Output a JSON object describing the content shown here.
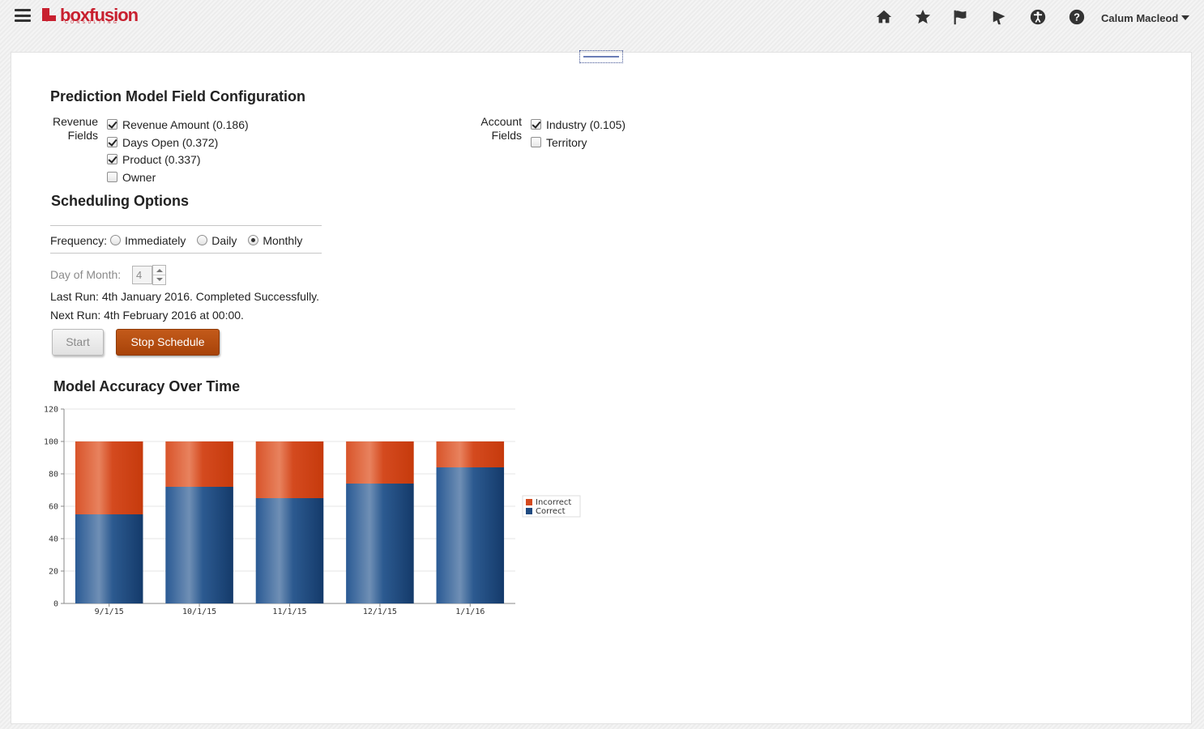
{
  "header": {
    "logo_text": "boxfusion",
    "logo_sub": "CONSULTING",
    "user_name": "Calum Macleod",
    "icons": [
      "home-icon",
      "star-icon",
      "flag-icon",
      "megaphone-icon",
      "accessibility-icon",
      "help-icon"
    ]
  },
  "config": {
    "title": "Prediction Model Field Configuration",
    "revenue_label_1": "Revenue",
    "revenue_label_2": "Fields",
    "revenue_fields": [
      {
        "label": "Revenue Amount (0.186)",
        "checked": true
      },
      {
        "label": "Days Open (0.372)",
        "checked": true
      },
      {
        "label": "Product (0.337)",
        "checked": true
      },
      {
        "label": "Owner",
        "checked": false
      }
    ],
    "account_label_1": "Account",
    "account_label_2": "Fields",
    "account_fields": [
      {
        "label": "Industry (0.105)",
        "checked": true
      },
      {
        "label": "Territory",
        "checked": false
      }
    ]
  },
  "scheduling": {
    "title": "Scheduling Options",
    "frequency_label": "Frequency:",
    "options": [
      "Immediately",
      "Daily",
      "Monthly"
    ],
    "selected": "Monthly",
    "day_of_month_label": "Day of Month:",
    "day_of_month_value": "4",
    "last_run": "Last Run: 4th January 2016. Completed Successfully.",
    "next_run": "Next Run: 4th February 2016 at 00:00.",
    "start_label": "Start",
    "stop_label": "Stop Schedule"
  },
  "chart_title": "Model Accuracy Over Time",
  "chart_data": {
    "type": "bar",
    "stacked": true,
    "categories": [
      "9/1/15",
      "10/1/15",
      "11/1/15",
      "12/1/15",
      "1/1/16"
    ],
    "series": [
      {
        "name": "Correct",
        "values": [
          55,
          72,
          65,
          74,
          84
        ],
        "color": "#1f4a80"
      },
      {
        "name": "Incorrect",
        "values": [
          45,
          28,
          35,
          26,
          16
        ],
        "color": "#d4491d"
      }
    ],
    "ylim": [
      0,
      120
    ],
    "yticks": [
      0,
      20,
      40,
      60,
      80,
      100,
      120
    ],
    "grid": true,
    "legend": "right"
  }
}
